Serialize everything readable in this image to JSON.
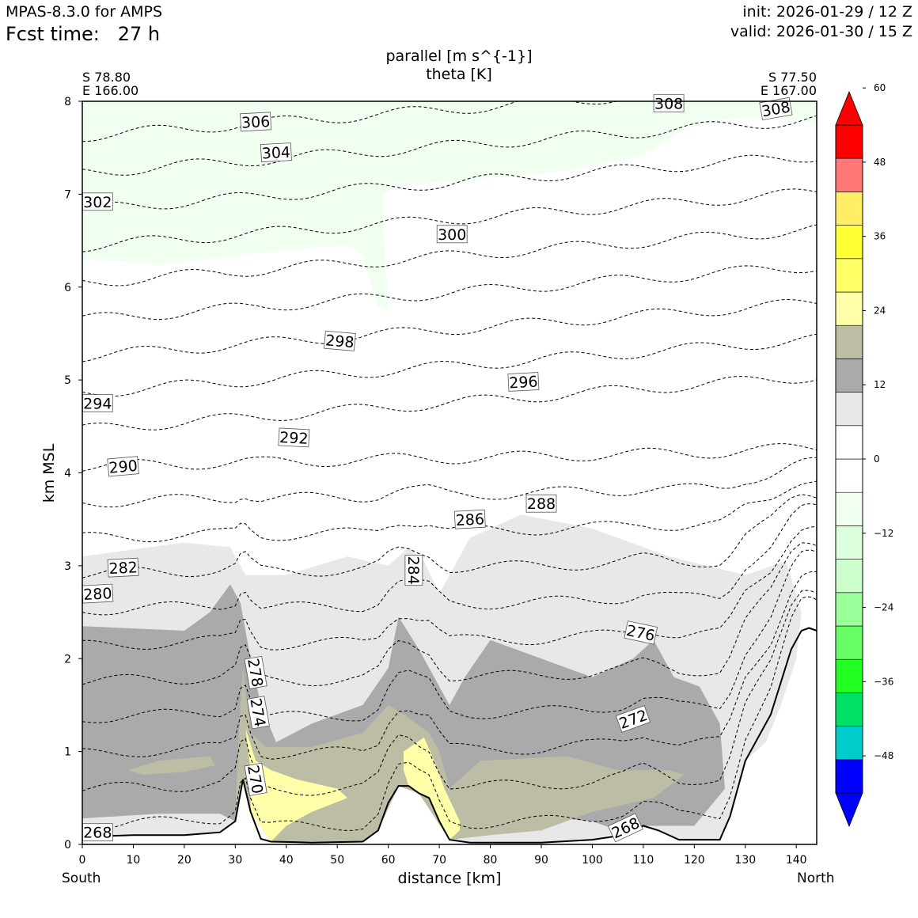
{
  "header": {
    "model": "MPAS-8.3.0 for AMPS",
    "fcst": "Fcst time:   27 h",
    "init": "init: 2026-01-29 / 12 Z",
    "valid": "valid: 2026-01-30 / 15 Z"
  },
  "chart_data": {
    "type": "cross-section",
    "title": "parallel [m s^{-1}]",
    "subtitle": "theta [K]",
    "xlabel": "distance [km]",
    "ylabel": "km MSL",
    "start_point": {
      "lat": "S 78.80",
      "lon": "E 166.00"
    },
    "end_point": {
      "lat": "S 77.50",
      "lon": "E 167.00"
    },
    "direction_left": "South",
    "direction_right": "North",
    "xlim": [
      0,
      144
    ],
    "ylim": [
      0,
      8
    ],
    "x_ticks": [
      0,
      10,
      20,
      30,
      40,
      50,
      60,
      70,
      80,
      90,
      100,
      110,
      120,
      130,
      140
    ],
    "y_ticks": [
      0,
      1,
      2,
      3,
      4,
      5,
      6,
      7,
      8
    ],
    "colorbar": {
      "min": -54,
      "max": 54,
      "step": 6,
      "tick_values": [
        60,
        48,
        36,
        24,
        12,
        0,
        -12,
        -24,
        -36,
        -48
      ],
      "tick_labels": [
        "60",
        "48",
        "36",
        "24",
        "12",
        "0",
        "−12",
        "−24",
        "−36",
        "−48"
      ],
      "colors": [
        "#0000ff",
        "#00cccc",
        "#00e066",
        "#22ff22",
        "#66ff66",
        "#99ff99",
        "#ccffcc",
        "#ddffdd",
        "#f0fff0",
        "#ffffff",
        "#ffffff",
        "#e8e8e8",
        "#aaaaaa",
        "#bdbda6",
        "#ffffaa",
        "#ffff66",
        "#ffff33",
        "#ffee66",
        "#ff7777",
        "#ff0000"
      ],
      "under_color": "#0000ff",
      "over_color": "#ff0000"
    },
    "terrain_km": [
      [
        0,
        0.08
      ],
      [
        5,
        0.09
      ],
      [
        10,
        0.1
      ],
      [
        20,
        0.1
      ],
      [
        27,
        0.13
      ],
      [
        30,
        0.25
      ],
      [
        31.5,
        0.7
      ],
      [
        33,
        0.35
      ],
      [
        35,
        0.06
      ],
      [
        37,
        0.03
      ],
      [
        45,
        0.02
      ],
      [
        55,
        0.03
      ],
      [
        58,
        0.15
      ],
      [
        60,
        0.45
      ],
      [
        62,
        0.63
      ],
      [
        64,
        0.63
      ],
      [
        66,
        0.55
      ],
      [
        68,
        0.5
      ],
      [
        70,
        0.25
      ],
      [
        72,
        0.05
      ],
      [
        76,
        0.02
      ],
      [
        90,
        0.02
      ],
      [
        100,
        0.05
      ],
      [
        106,
        0.1
      ],
      [
        110,
        0.2
      ],
      [
        113,
        0.15
      ],
      [
        117,
        0.05
      ],
      [
        125,
        0.05
      ],
      [
        127,
        0.3
      ],
      [
        130,
        0.9
      ],
      [
        135,
        1.4
      ],
      [
        139,
        2.1
      ],
      [
        141,
        2.3
      ],
      [
        142.5,
        2.33
      ],
      [
        144,
        2.3
      ]
    ],
    "wind_regions": [
      {
        "level": 6,
        "color": "#f0fff0",
        "points": [
          [
            0,
            6.3
          ],
          [
            15,
            6.25
          ],
          [
            25,
            6.3
          ],
          [
            40,
            6.4
          ],
          [
            52,
            6.45
          ],
          [
            55,
            6.35
          ],
          [
            58,
            5.8
          ],
          [
            60,
            5.75
          ],
          [
            59,
            6.6
          ],
          [
            59,
            7
          ],
          [
            62,
            7.1
          ],
          [
            75,
            7.15
          ],
          [
            95,
            7.25
          ],
          [
            110,
            7.42
          ],
          [
            118,
            7.7
          ],
          [
            125,
            7.8
          ],
          [
            135,
            7.85
          ],
          [
            144,
            7.75
          ],
          [
            144,
            8
          ],
          [
            0,
            8
          ]
        ]
      },
      {
        "level": 12,
        "color": "#e8e8e8",
        "points": [
          [
            0,
            3.1
          ],
          [
            20,
            3.25
          ],
          [
            29,
            3.2
          ],
          [
            32,
            2.9
          ],
          [
            40,
            2.9
          ],
          [
            52,
            3.1
          ],
          [
            60,
            3.0
          ],
          [
            64,
            3.2
          ],
          [
            67,
            3.05
          ],
          [
            70,
            2.7
          ],
          [
            76,
            3.3
          ],
          [
            86,
            3.55
          ],
          [
            100,
            3.4
          ],
          [
            115,
            3.1
          ],
          [
            130,
            2.9
          ],
          [
            138,
            3.05
          ],
          [
            141,
            2.5
          ],
          [
            140,
            2.0
          ],
          [
            137,
            1.5
          ],
          [
            134,
            1.1
          ],
          [
            130,
            0.9
          ],
          [
            127,
            0.3
          ],
          [
            125,
            0.05
          ],
          [
            117,
            0.05
          ],
          [
            110,
            0.2
          ],
          [
            100,
            0.05
          ],
          [
            90,
            0.02
          ],
          [
            76,
            0.02
          ],
          [
            72,
            0.05
          ],
          [
            68,
            0.5
          ],
          [
            62,
            0.63
          ],
          [
            58,
            0.15
          ],
          [
            55,
            0.03
          ],
          [
            37,
            0.03
          ],
          [
            33,
            0.35
          ],
          [
            31.5,
            0.7
          ],
          [
            30,
            0.25
          ],
          [
            27,
            0.13
          ],
          [
            20,
            0.1
          ],
          [
            10,
            0.1
          ],
          [
            0,
            0.08
          ]
        ]
      },
      {
        "level": 18,
        "color": "#aaaaaa",
        "points": [
          [
            0,
            2.35
          ],
          [
            20,
            2.3
          ],
          [
            25,
            2.5
          ],
          [
            29,
            2.8
          ],
          [
            31,
            2.6
          ],
          [
            33,
            2.0
          ],
          [
            35,
            1.5
          ],
          [
            38,
            1.1
          ],
          [
            45,
            1.3
          ],
          [
            55,
            1.5
          ],
          [
            60,
            1.9
          ],
          [
            62,
            2.45
          ],
          [
            66,
            2.1
          ],
          [
            70,
            1.7
          ],
          [
            72,
            1.5
          ],
          [
            75,
            1.8
          ],
          [
            80,
            2.2
          ],
          [
            90,
            2.0
          ],
          [
            100,
            1.8
          ],
          [
            108,
            2.0
          ],
          [
            112,
            2.2
          ],
          [
            116,
            1.8
          ],
          [
            121,
            1.7
          ],
          [
            125,
            1.3
          ],
          [
            126,
            0.6
          ],
          [
            120,
            0.2
          ],
          [
            110,
            0.2
          ],
          [
            105,
            0.15
          ],
          [
            100,
            0.25
          ],
          [
            90,
            0.3
          ],
          [
            80,
            0.25
          ],
          [
            72,
            0.05
          ],
          [
            66,
            0.55
          ],
          [
            62,
            0.63
          ],
          [
            58,
            0.15
          ],
          [
            55,
            0.03
          ],
          [
            37,
            0.03
          ],
          [
            33,
            0.35
          ],
          [
            31.5,
            0.7
          ],
          [
            30,
            0.25
          ],
          [
            27,
            0.33
          ],
          [
            15,
            0.33
          ],
          [
            0,
            0.28
          ]
        ]
      },
      {
        "level": 24,
        "color": "#bdbda6",
        "points": [
          [
            30,
            0.35
          ],
          [
            31,
            1.5
          ],
          [
            31.5,
            1.9
          ],
          [
            33,
            1.2
          ],
          [
            36,
            1.05
          ],
          [
            45,
            1.05
          ],
          [
            55,
            1.2
          ],
          [
            60,
            1.5
          ],
          [
            63,
            1.4
          ],
          [
            68,
            1.2
          ],
          [
            70,
            1.0
          ],
          [
            72,
            0.6
          ],
          [
            78,
            0.9
          ],
          [
            95,
            0.95
          ],
          [
            105,
            0.8
          ],
          [
            115,
            0.8
          ],
          [
            118,
            0.75
          ],
          [
            112,
            0.5
          ],
          [
            100,
            0.35
          ],
          [
            90,
            0.15
          ],
          [
            80,
            0.1
          ],
          [
            72,
            0.05
          ],
          [
            66,
            0.55
          ],
          [
            62,
            0.63
          ],
          [
            58,
            0.15
          ],
          [
            55,
            0.03
          ],
          [
            37,
            0.03
          ],
          [
            33,
            0.35
          ],
          [
            31.5,
            0.7
          ]
        ]
      },
      {
        "level": 24,
        "color": "#bdbda6",
        "points": [
          [
            9,
            0.8
          ],
          [
            15,
            0.9
          ],
          [
            25,
            0.95
          ],
          [
            26,
            0.85
          ],
          [
            20,
            0.78
          ],
          [
            12,
            0.75
          ]
        ]
      },
      {
        "level": 30,
        "color": "#ffffaa",
        "points": [
          [
            32,
            1.25
          ],
          [
            34,
            0.9
          ],
          [
            37,
            0.8
          ],
          [
            42,
            0.7
          ],
          [
            50,
            0.6
          ],
          [
            52,
            0.5
          ],
          [
            45,
            0.35
          ],
          [
            40,
            0.2
          ],
          [
            37,
            0.03
          ],
          [
            33,
            0.35
          ],
          [
            33,
            0.8
          ]
        ]
      },
      {
        "level": 30,
        "color": "#ffffaa",
        "points": [
          [
            63,
            1.0
          ],
          [
            67,
            1.15
          ],
          [
            69,
            0.9
          ],
          [
            71,
            0.6
          ],
          [
            74,
            0.25
          ],
          [
            74,
            0.15
          ],
          [
            72,
            0.05
          ],
          [
            68,
            0.5
          ],
          [
            64,
            0.63
          ],
          [
            63,
            0.8
          ]
        ]
      }
    ],
    "contour_levels": [
      268,
      270,
      272,
      274,
      276,
      278,
      280,
      282,
      284,
      286,
      288,
      290,
      292,
      294,
      296,
      298,
      300,
      302,
      304,
      306,
      308
    ],
    "contour_labels": [
      {
        "text": "306",
        "x": 34,
        "y": 7.78,
        "angle": -3
      },
      {
        "text": "304",
        "x": 38,
        "y": 7.45,
        "angle": -3
      },
      {
        "text": "308",
        "x": 115,
        "y": 7.98,
        "angle": 0
      },
      {
        "text": "308",
        "x": 136,
        "y": 7.92,
        "angle": -10
      },
      {
        "text": "302",
        "x": 3,
        "y": 6.92,
        "angle": 0
      },
      {
        "text": "300",
        "x": 72.5,
        "y": 6.57,
        "angle": 0
      },
      {
        "text": "298",
        "x": 50.5,
        "y": 5.42,
        "angle": 5
      },
      {
        "text": "296",
        "x": 86.5,
        "y": 4.98,
        "angle": -3
      },
      {
        "text": "294",
        "x": 3,
        "y": 4.75,
        "angle": 0
      },
      {
        "text": "292",
        "x": 41.5,
        "y": 4.38,
        "angle": 3
      },
      {
        "text": "290",
        "x": 8,
        "y": 4.07,
        "angle": -5
      },
      {
        "text": "288",
        "x": 90,
        "y": 3.67,
        "angle": 0
      },
      {
        "text": "286",
        "x": 76,
        "y": 3.5,
        "angle": -3
      },
      {
        "text": "284",
        "x": 65,
        "y": 2.95,
        "angle": 90
      },
      {
        "text": "282",
        "x": 8,
        "y": 2.98,
        "angle": -3
      },
      {
        "text": "280",
        "x": 3,
        "y": 2.7,
        "angle": -3
      },
      {
        "text": "278",
        "x": 34,
        "y": 1.85,
        "angle": 80
      },
      {
        "text": "276",
        "x": 109.5,
        "y": 2.28,
        "angle": 12
      },
      {
        "text": "274",
        "x": 34.5,
        "y": 1.42,
        "angle": 80
      },
      {
        "text": "272",
        "x": 108,
        "y": 1.35,
        "angle": -20
      },
      {
        "text": "270",
        "x": 34,
        "y": 0.7,
        "angle": 80
      },
      {
        "text": "268",
        "x": 3,
        "y": 0.13,
        "angle": 0
      },
      {
        "text": "268",
        "x": 106.5,
        "y": 0.18,
        "angle": -25
      }
    ]
  }
}
